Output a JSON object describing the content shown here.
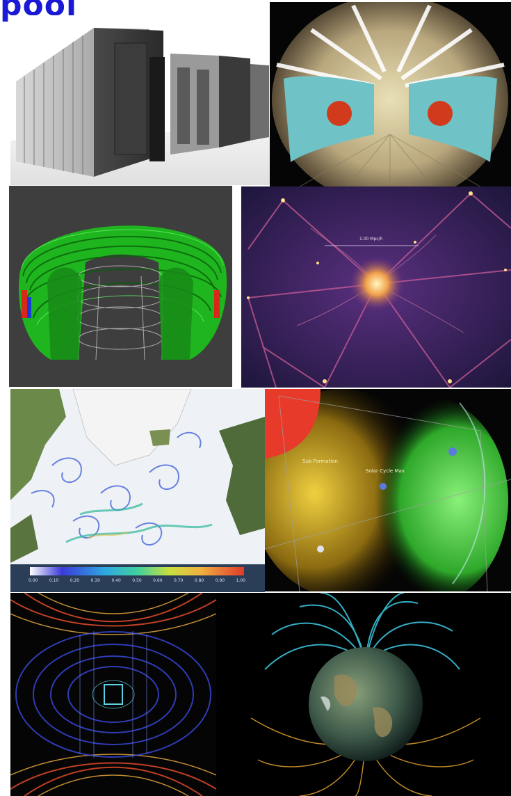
{
  "header": {
    "title": "pool",
    "color": "#1a1ad6"
  },
  "panels": {
    "ocean_colorbar": {
      "ticks": [
        "0.00",
        "0.10",
        "0.20",
        "0.30",
        "0.40",
        "0.50",
        "0.60",
        "0.70",
        "0.80",
        "0.90",
        "1.00"
      ]
    },
    "magnetosphere_3d": {
      "labels": [
        "Sub Formation",
        "Solar Cycle Max"
      ]
    },
    "cosmic_web": {
      "scale_label": "1.00 Mpc/h"
    }
  }
}
